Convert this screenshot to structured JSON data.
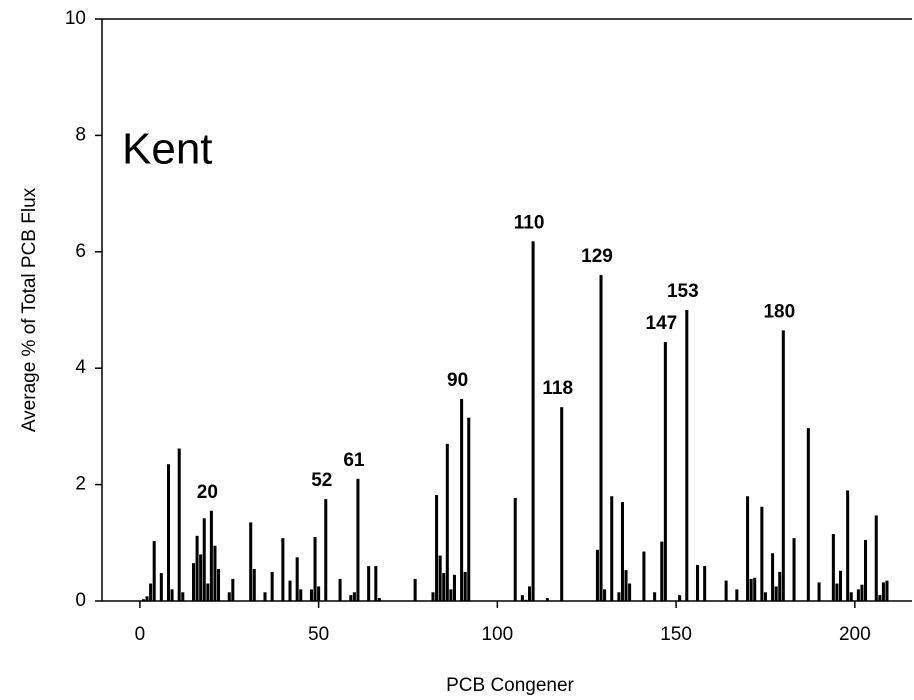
{
  "chart_data": {
    "type": "bar",
    "inset_label": "Kent",
    "x_label": "PCB Congener",
    "y_label": "Average % of Total PCB Flux",
    "color": "#000000",
    "x": [
      1,
      2,
      3,
      4,
      6,
      8,
      9,
      11,
      12,
      15,
      16,
      17,
      18,
      19,
      20,
      21,
      22,
      25,
      26,
      31,
      32,
      35,
      37,
      40,
      42,
      44,
      45,
      48,
      49,
      50,
      52,
      56,
      59,
      60,
      61,
      64,
      66,
      67,
      77,
      82,
      83,
      84,
      85,
      86,
      87,
      88,
      90,
      91,
      92,
      105,
      107,
      108,
      109,
      110,
      114,
      118,
      128,
      129,
      130,
      132,
      134,
      135,
      136,
      137,
      141,
      144,
      146,
      147,
      151,
      153,
      156,
      158,
      164,
      167,
      170,
      171,
      172,
      174,
      175,
      177,
      178,
      179,
      180,
      183,
      187,
      190,
      194,
      195,
      196,
      198,
      199,
      201,
      202,
      203,
      206,
      207,
      208,
      209
    ],
    "values": [
      0.03,
      0.08,
      0.3,
      1.03,
      0.48,
      2.35,
      0.2,
      2.62,
      0.15,
      0.65,
      1.12,
      0.8,
      1.42,
      0.3,
      1.55,
      0.95,
      0.55,
      0.15,
      0.38,
      1.35,
      0.55,
      0.15,
      0.5,
      1.08,
      0.35,
      0.75,
      0.2,
      0.2,
      1.1,
      0.25,
      1.75,
      0.38,
      0.1,
      0.15,
      2.1,
      0.6,
      0.6,
      0.05,
      0.38,
      0.15,
      1.82,
      0.78,
      0.48,
      2.7,
      0.2,
      0.45,
      3.47,
      0.5,
      3.15,
      1.77,
      0.1,
      0.02,
      0.25,
      6.18,
      0.05,
      3.33,
      0.88,
      5.6,
      0.2,
      1.8,
      0.15,
      1.7,
      0.53,
      0.3,
      0.85,
      0.15,
      1.02,
      4.45,
      0.1,
      5.0,
      0.62,
      0.6,
      0.35,
      0.2,
      1.8,
      0.38,
      0.4,
      1.62,
      0.15,
      0.82,
      0.25,
      0.5,
      4.65,
      1.08,
      2.97,
      0.32,
      1.15,
      0.3,
      0.52,
      1.9,
      0.15,
      0.2,
      0.28,
      1.05,
      1.47,
      0.1,
      0.32,
      0.35
    ],
    "annotations": [
      {
        "x": 20,
        "text": "20"
      },
      {
        "x": 52,
        "text": "52"
      },
      {
        "x": 61,
        "text": "61"
      },
      {
        "x": 90,
        "text": "90"
      },
      {
        "x": 110,
        "text": "110"
      },
      {
        "x": 118,
        "text": "118"
      },
      {
        "x": 129,
        "text": "129"
      },
      {
        "x": 147,
        "text": "147"
      },
      {
        "x": 153,
        "text": "153"
      },
      {
        "x": 180,
        "text": "180"
      }
    ],
    "xlim": [
      -10.6,
      216
    ],
    "xticks": [
      0,
      50,
      100,
      150,
      200
    ],
    "ylim": [
      0,
      10
    ],
    "yticks": [
      0,
      2,
      4,
      6,
      8,
      10
    ]
  }
}
